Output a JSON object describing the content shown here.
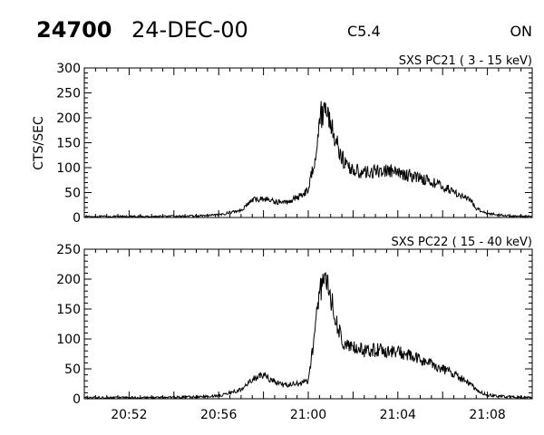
{
  "header": {
    "event_id": "24700",
    "date": "24-DEC-00",
    "flare_class": "C5.4",
    "status": "ON"
  },
  "chart_data": [
    {
      "type": "line",
      "title": "SXS PC21  (  3 - 15 keV)",
      "ylabel": "CTS/SEC",
      "xlabel": "",
      "x_unit": "minutes",
      "xlim": [
        "20:50",
        "21:10"
      ],
      "ylim": [
        0,
        300
      ],
      "y_ticks": [
        0,
        50,
        100,
        150,
        200,
        250,
        300
      ],
      "x_ticks": [
        "20:52",
        "20:56",
        "21:00",
        "21:04",
        "21:08"
      ],
      "grid": false,
      "series": [
        {
          "x": [
            "20:50",
            "20:53",
            "20:55",
            "20:56",
            "20:57",
            "20:57.5",
            "20:58",
            "20:58.5",
            "20:59",
            "20:59.5",
            "21:00",
            "21:00.3",
            "21:00.5",
            "21:00.8",
            "21:01",
            "21:01.3",
            "21:01.6",
            "21:02",
            "21:02.5",
            "21:03",
            "21:03.5",
            "21:04",
            "21:04.5",
            "21:05",
            "21:05.5",
            "21:06",
            "21:06.5",
            "21:07",
            "21:07.3",
            "21:07.5",
            "21:08",
            "21:09",
            "21:10"
          ],
          "values": [
            2,
            2,
            3,
            5,
            15,
            35,
            38,
            32,
            30,
            40,
            55,
            120,
            200,
            222,
            190,
            145,
            110,
            95,
            90,
            92,
            95,
            88,
            85,
            80,
            72,
            62,
            52,
            40,
            32,
            18,
            8,
            3,
            2
          ]
        }
      ]
    },
    {
      "type": "line",
      "title": "SXS PC22  ( 15 - 40 keV)",
      "ylabel": "",
      "xlabel": "",
      "x_unit": "minutes",
      "xlim": [
        "20:50",
        "21:10"
      ],
      "ylim": [
        0,
        250
      ],
      "y_ticks": [
        0,
        50,
        100,
        150,
        200,
        250
      ],
      "x_ticks": [
        "20:52",
        "20:56",
        "21:00",
        "21:04",
        "21:08"
      ],
      "grid": false,
      "series": [
        {
          "x": [
            "20:50",
            "20:53",
            "20:55",
            "20:56",
            "20:57",
            "20:57.5",
            "20:58",
            "20:58.5",
            "20:59",
            "20:59.5",
            "21:00",
            "21:00.3",
            "21:00.5",
            "21:00.8",
            "21:01",
            "21:01.3",
            "21:01.6",
            "21:02",
            "21:02.5",
            "21:03",
            "21:03.5",
            "21:04",
            "21:04.5",
            "21:05",
            "21:05.5",
            "21:06",
            "21:06.5",
            "21:07",
            "21:07.3",
            "21:07.5",
            "21:08",
            "21:09",
            "21:10"
          ],
          "values": [
            2,
            2,
            3,
            5,
            15,
            32,
            40,
            28,
            22,
            25,
            30,
            110,
            185,
            200,
            170,
            120,
            90,
            85,
            80,
            82,
            80,
            78,
            72,
            65,
            58,
            50,
            42,
            30,
            22,
            14,
            6,
            3,
            2
          ]
        }
      ]
    }
  ]
}
